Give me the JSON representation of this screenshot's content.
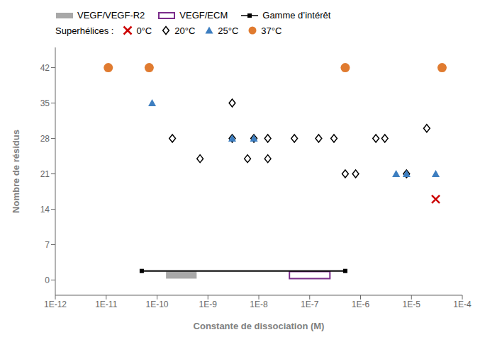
{
  "chart_data": {
    "type": "scatter",
    "xlabel": "Constante de dissociation (M)",
    "ylabel": "Nombre de résidus",
    "log": "x",
    "grid": false,
    "legend": "top",
    "annotations": [
      "Superhélices :"
    ],
    "xlim": [
      1e-12,
      0.0001
    ],
    "xticks": [
      {
        "value": 1e-12,
        "label": "1E-12"
      },
      {
        "value": 1e-11,
        "label": "1E-11"
      },
      {
        "value": 1e-10,
        "label": "1E-10"
      },
      {
        "value": 1e-09,
        "label": "1E-9"
      },
      {
        "value": 1e-08,
        "label": "1E-8"
      },
      {
        "value": 1e-07,
        "label": "1E-7"
      },
      {
        "value": 1e-06,
        "label": "1E-6"
      },
      {
        "value": 1e-05,
        "label": "1E-5"
      },
      {
        "value": 0.0001,
        "label": "1E-4"
      }
    ],
    "ylim": [
      -3,
      46
    ],
    "yticks": [
      0,
      7,
      14,
      21,
      28,
      35,
      42
    ],
    "series": [
      {
        "name": "VEGF/VEGF-R2",
        "type": "band",
        "color": "#999999",
        "x": [
          1.5e-10,
          6e-10
        ],
        "y": [
          0.3,
          1.7
        ]
      },
      {
        "name": "VEGF/ECM",
        "type": "outline",
        "color": "#7B2D8B",
        "x": [
          4e-08,
          2.5e-07
        ],
        "y": [
          0.3,
          1.7
        ]
      },
      {
        "name": "Gamme d’intérêt",
        "type": "line",
        "color": "#000000",
        "marker": "square",
        "x": [
          5e-11,
          5e-07
        ],
        "values": [
          1.8,
          1.8
        ]
      },
      {
        "name": "0°C",
        "type": "scatter",
        "color": "#CC0000",
        "marker": "x",
        "x": [
          3e-05
        ],
        "values": [
          16
        ]
      },
      {
        "name": "20°C",
        "type": "scatter",
        "color": "#000000",
        "marker": "diamond",
        "x": [
          2e-10,
          7e-10,
          3e-09,
          3e-09,
          6e-09,
          8e-09,
          1.5e-08,
          1.5e-08,
          5e-08,
          1.5e-07,
          3e-07,
          5e-07,
          8e-07,
          2e-06,
          3e-06,
          8e-06,
          2e-05
        ],
        "values": [
          28,
          24,
          28,
          35,
          24,
          28,
          28,
          24,
          28,
          28,
          28,
          21,
          21,
          28,
          28,
          21,
          30
        ]
      },
      {
        "name": "25°C",
        "type": "scatter",
        "color": "#3D7EC0",
        "marker": "triangle",
        "x": [
          8e-11,
          3e-09,
          8e-09,
          5e-06,
          8e-06,
          3e-05
        ],
        "values": [
          35,
          28,
          28,
          21,
          21,
          21
        ]
      },
      {
        "name": "37°C",
        "type": "scatter",
        "color": "#E07B30",
        "marker": "circle",
        "x": [
          1.1e-11,
          7e-11,
          5e-07,
          4e-05
        ],
        "values": [
          42,
          42,
          42,
          42
        ]
      }
    ]
  }
}
